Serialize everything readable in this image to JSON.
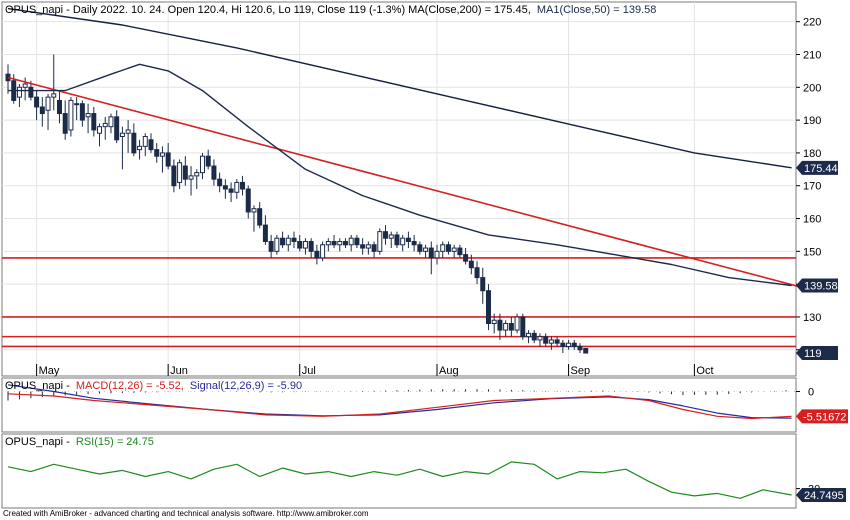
{
  "header": {
    "main": {
      "prefix": "OPUS_napi - Daily 2022. 10. 24. Open 120.4, Hi 120.6, Lo 119, Close 119 (-1.3%) MA(Close,200) = 175.45,",
      "ma50": "MA1(Close,50) = 139.58"
    },
    "macd": {
      "prefix": "OPUS_napi -",
      "macd": "MACD(12,26) = -5.52,",
      "signal": "Signal(12,26,9) = -5.90"
    },
    "rsi": {
      "prefix": "OPUS_napi -",
      "rsi": "RSI(15) = 24.75"
    }
  },
  "footer": "Created with AmiBroker - advanced charting and technical analysis software. http://www.amibroker.com",
  "colors": {
    "candle_up": "#ffffff",
    "candle_down": "#1c2b4a",
    "ma200": "#14213d",
    "ma50": "#1c2b4a",
    "trendline": "#d42020",
    "support": "#d42020",
    "macd": "#d42020",
    "signal": "#2a2a9a",
    "rsi": "#1f8a1f",
    "badge": "#1c2b4a",
    "badge_red": "#d42020"
  },
  "chart_data": [
    {
      "type": "candlestick",
      "title": "OPUS_napi - Daily",
      "ylim": [
        112,
        226
      ],
      "y_ticks": [
        120,
        130,
        140,
        150,
        160,
        170,
        180,
        190,
        200,
        210,
        220
      ],
      "x_labels": [
        "May",
        "Jun",
        "Jul",
        "Aug",
        "Sep",
        "Oct"
      ],
      "month_index": [
        5,
        28,
        51,
        75,
        98,
        120
      ],
      "candles": [
        [
          204,
          207,
          198,
          202
        ],
        [
          202,
          204,
          195,
          196
        ],
        [
          197,
          201,
          194,
          200
        ],
        [
          200,
          203,
          196,
          201
        ],
        [
          200,
          202,
          196,
          197
        ],
        [
          197,
          199,
          190,
          194
        ],
        [
          194,
          197,
          188,
          192
        ],
        [
          193,
          198,
          187,
          197
        ],
        [
          197,
          210,
          193,
          198
        ],
        [
          196,
          199,
          189,
          192
        ],
        [
          192,
          196,
          184,
          186
        ],
        [
          187,
          197,
          185,
          196
        ],
        [
          195,
          197,
          190,
          195
        ],
        [
          195,
          196,
          188,
          190
        ],
        [
          191,
          195,
          186,
          192
        ],
        [
          192,
          194,
          185,
          187
        ],
        [
          186,
          189,
          182,
          188
        ],
        [
          188,
          191,
          184,
          189
        ],
        [
          188,
          192,
          186,
          191
        ],
        [
          191,
          193,
          183,
          184
        ],
        [
          185,
          188,
          175,
          186
        ],
        [
          186,
          190,
          180,
          187
        ],
        [
          186,
          189,
          179,
          180
        ],
        [
          181,
          184,
          178,
          182
        ],
        [
          182,
          186,
          179,
          185
        ],
        [
          184,
          186,
          180,
          181
        ],
        [
          181,
          183,
          177,
          179
        ],
        [
          179,
          182,
          174,
          180
        ],
        [
          180,
          183,
          175,
          176
        ],
        [
          176,
          178,
          168,
          170
        ],
        [
          171,
          178,
          169,
          177
        ],
        [
          176,
          179,
          170,
          172
        ],
        [
          172,
          176,
          167,
          173
        ],
        [
          173,
          175,
          169,
          174
        ],
        [
          174,
          180,
          172,
          179
        ],
        [
          179,
          181,
          175,
          176
        ],
        [
          176,
          178,
          170,
          172
        ],
        [
          172,
          174,
          168,
          170
        ],
        [
          170,
          172,
          166,
          169
        ],
        [
          169,
          171,
          165,
          168
        ],
        [
          168,
          172,
          166,
          171
        ],
        [
          171,
          173,
          167,
          169
        ],
        [
          169,
          170,
          160,
          162
        ],
        [
          162,
          164,
          156,
          163
        ],
        [
          163,
          165,
          157,
          158
        ],
        [
          158,
          161,
          152,
          153
        ],
        [
          153,
          155,
          148,
          150
        ],
        [
          150,
          155,
          149,
          154
        ],
        [
          154,
          156,
          151,
          152
        ],
        [
          152,
          155,
          150,
          154
        ],
        [
          154,
          156,
          151,
          153
        ],
        [
          153,
          155,
          150,
          151
        ],
        [
          151,
          154,
          149,
          153
        ],
        [
          153,
          154,
          148,
          150
        ],
        [
          150,
          152,
          146,
          148
        ],
        [
          148,
          153,
          147,
          152
        ],
        [
          152,
          154,
          150,
          153
        ],
        [
          153,
          155,
          151,
          152
        ],
        [
          152,
          154,
          150,
          153
        ],
        [
          153,
          154,
          151,
          152
        ],
        [
          152,
          155,
          150,
          154
        ],
        [
          154,
          155,
          151,
          152
        ],
        [
          152,
          154,
          149,
          151
        ],
        [
          151,
          153,
          149,
          152
        ],
        [
          152,
          153,
          148,
          150
        ],
        [
          150,
          157,
          149,
          156
        ],
        [
          156,
          158,
          152,
          154
        ],
        [
          154,
          156,
          151,
          155
        ],
        [
          155,
          156,
          151,
          152
        ],
        [
          152,
          155,
          150,
          154
        ],
        [
          154,
          156,
          151,
          153
        ],
        [
          153,
          155,
          150,
          152
        ],
        [
          152,
          153,
          149,
          150
        ],
        [
          150,
          152,
          148,
          151
        ],
        [
          151,
          153,
          143,
          148
        ],
        [
          148,
          152,
          146,
          150
        ],
        [
          150,
          153,
          148,
          152
        ],
        [
          152,
          153,
          149,
          150
        ],
        [
          150,
          152,
          148,
          151
        ],
        [
          151,
          152,
          148,
          149
        ],
        [
          149,
          151,
          146,
          147
        ],
        [
          147,
          149,
          143,
          145
        ],
        [
          145,
          147,
          140,
          142
        ],
        [
          142,
          145,
          134,
          138
        ],
        [
          138,
          140,
          126,
          128
        ],
        [
          128,
          131,
          125,
          129
        ],
        [
          129,
          131,
          123,
          126
        ],
        [
          126,
          129,
          124,
          128
        ],
        [
          128,
          130,
          124,
          126
        ],
        [
          126,
          131,
          125,
          130
        ],
        [
          130,
          131,
          123,
          124
        ],
        [
          124,
          126,
          122,
          125
        ],
        [
          125,
          126,
          122,
          123
        ],
        [
          123,
          125,
          121,
          124
        ],
        [
          124,
          125,
          121,
          122
        ],
        [
          122,
          124,
          120,
          123
        ],
        [
          123,
          124,
          121,
          122
        ],
        [
          122,
          123,
          119,
          121
        ],
        [
          121,
          123,
          120,
          122
        ],
        [
          122,
          123,
          120,
          121
        ],
        [
          121,
          122,
          119,
          120
        ],
        [
          120.4,
          120.6,
          119,
          119
        ]
      ],
      "ma200": {
        "name": "MA(Close,200)",
        "values": [
          [
            0,
            224
          ],
          [
            20,
            219
          ],
          [
            40,
            212
          ],
          [
            60,
            204
          ],
          [
            80,
            196
          ],
          [
            100,
            188
          ],
          [
            120,
            180
          ],
          [
            137,
            175.45
          ]
        ]
      },
      "ma50": {
        "name": "MA1(Close,50)",
        "values": [
          [
            0,
            199
          ],
          [
            10,
            199
          ],
          [
            18,
            204
          ],
          [
            23,
            207
          ],
          [
            28,
            205
          ],
          [
            34,
            199
          ],
          [
            42,
            188
          ],
          [
            52,
            175
          ],
          [
            62,
            167
          ],
          [
            72,
            161
          ],
          [
            84,
            155
          ],
          [
            96,
            152
          ],
          [
            106,
            149
          ],
          [
            116,
            146
          ],
          [
            126,
            142
          ],
          [
            137,
            139.58
          ]
        ]
      },
      "trendline": [
        [
          0,
          203
        ],
        [
          141,
          138
        ]
      ],
      "support_lines": [
        148,
        130,
        124,
        121
      ],
      "last_labels": {
        "ma200": "175.447",
        "ma50": "139.584",
        "close": "119"
      }
    },
    {
      "type": "line",
      "title": "MACD(12,26)",
      "ylim": [
        -9,
        3
      ],
      "y_ticks": [
        0
      ],
      "series": [
        {
          "name": "MACD(12,26)",
          "values": [
            [
              0,
              -0.5
            ],
            [
              8,
              -1
            ],
            [
              15,
              -2
            ],
            [
              25,
              -3
            ],
            [
              35,
              -4
            ],
            [
              45,
              -5.2
            ],
            [
              55,
              -5.5
            ],
            [
              65,
              -5
            ],
            [
              75,
              -3.5
            ],
            [
              85,
              -2
            ],
            [
              95,
              -1.5
            ],
            [
              105,
              -1
            ],
            [
              112,
              -2
            ],
            [
              118,
              -4
            ],
            [
              124,
              -5.5
            ],
            [
              130,
              -6
            ],
            [
              137,
              -5.52
            ]
          ]
        },
        {
          "name": "Signal(12,26,9)",
          "values": [
            [
              0,
              1.5
            ],
            [
              8,
              0
            ],
            [
              15,
              -1.5
            ],
            [
              25,
              -2.8
            ],
            [
              35,
              -4
            ],
            [
              45,
              -5
            ],
            [
              55,
              -5.4
            ],
            [
              65,
              -5.2
            ],
            [
              75,
              -4
            ],
            [
              85,
              -2.5
            ],
            [
              95,
              -1.6
            ],
            [
              105,
              -1.2
            ],
            [
              112,
              -1.8
            ],
            [
              118,
              -3.2
            ],
            [
              124,
              -4.8
            ],
            [
              130,
              -5.8
            ],
            [
              137,
              -5.9
            ]
          ]
        }
      ],
      "last_label": "-5.51672"
    },
    {
      "type": "line",
      "title": "RSI(15)",
      "ylim": [
        14,
        75
      ],
      "y_ticks": [
        30
      ],
      "series": [
        {
          "name": "RSI(15)",
          "values": [
            [
              0,
              48
            ],
            [
              4,
              44
            ],
            [
              8,
              50
            ],
            [
              12,
              46
            ],
            [
              16,
              42
            ],
            [
              20,
              45
            ],
            [
              24,
              40
            ],
            [
              28,
              44
            ],
            [
              32,
              38
            ],
            [
              36,
              46
            ],
            [
              40,
              50
            ],
            [
              44,
              40
            ],
            [
              48,
              47
            ],
            [
              52,
              42
            ],
            [
              56,
              44
            ],
            [
              60,
              40
            ],
            [
              64,
              44
            ],
            [
              68,
              41
            ],
            [
              72,
              46
            ],
            [
              76,
              40
            ],
            [
              80,
              44
            ],
            [
              84,
              42
            ],
            [
              88,
              52
            ],
            [
              92,
              50
            ],
            [
              96,
              38
            ],
            [
              100,
              44
            ],
            [
              104,
              43
            ],
            [
              108,
              46
            ],
            [
              112,
              36
            ],
            [
              116,
              27
            ],
            [
              120,
              24
            ],
            [
              124,
              26
            ],
            [
              128,
              22
            ],
            [
              132,
              29
            ],
            [
              137,
              24.75
            ]
          ]
        }
      ],
      "last_label": "24.7495"
    }
  ]
}
